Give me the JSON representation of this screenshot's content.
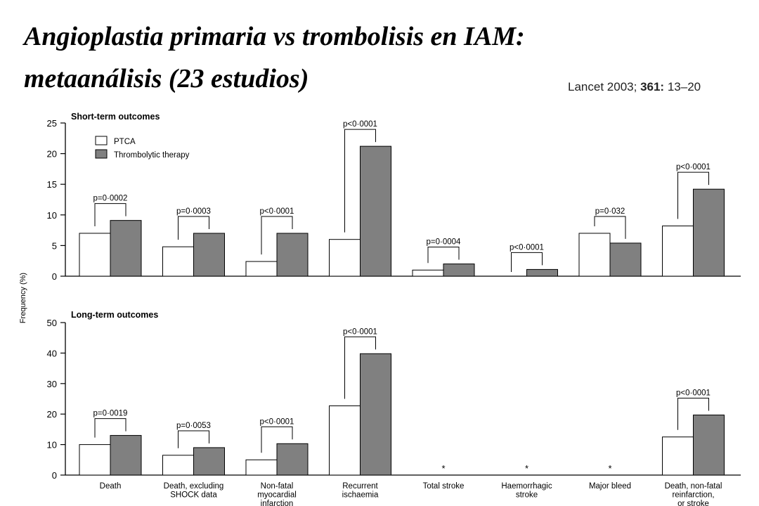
{
  "slide": {
    "title_line1": "Angioplastia primaria vs trombolisis en IAM:",
    "title_line2": "metaanálisis (23 estudios)",
    "citation_journal": "Lancet",
    "citation_year": "2003;",
    "citation_volume": "361:",
    "citation_pages": "13–20"
  },
  "colors": {
    "ptca": "#ffffff",
    "thrombolytic": "#808080",
    "stroke": "#000000"
  },
  "chart_data": [
    {
      "type": "bar",
      "title": "Short-term outcomes",
      "ylabel": "Frequency (%)",
      "ylim": [
        0,
        25
      ],
      "yticks": [
        0,
        5,
        10,
        15,
        20,
        25
      ],
      "legend": {
        "placement": "top-left",
        "entries": [
          "PTCA",
          "Thrombolytic therapy"
        ]
      },
      "categories": [
        "Death",
        "Death, excluding SHOCK data",
        "Non-fatal myocardial infarction",
        "Recurrent ischaemia",
        "Total stroke",
        "Haemorrhagic stroke",
        "Major bleed",
        "Death, non-fatal reinfarction, or stroke"
      ],
      "series": [
        {
          "name": "PTCA",
          "values": [
            7,
            4.8,
            2.4,
            6,
            1,
            0,
            7,
            8.2
          ]
        },
        {
          "name": "Thrombolytic therapy",
          "values": [
            9.1,
            7,
            7,
            21.2,
            2,
            1.1,
            5.4,
            14.2
          ]
        }
      ],
      "pvalues": [
        "p=0·0002",
        "p=0·0003",
        "p<0·0001",
        "p<0·0001",
        "p=0·0004",
        "p<0·0001",
        "p=0·032",
        "p<0·0001"
      ]
    },
    {
      "type": "bar",
      "title": "Long-term outcomes",
      "ylim": [
        0,
        50
      ],
      "yticks": [
        0,
        10,
        20,
        30,
        40,
        50
      ],
      "categories": [
        "Death",
        "Death, excluding SHOCK data",
        "Non-fatal myocardial infarction",
        "Recurrent ischaemia",
        "Total stroke",
        "Haemorrhagic stroke",
        "Major bleed",
        "Death, non-fatal reinfarction, or stroke"
      ],
      "series": [
        {
          "name": "PTCA",
          "values": [
            10,
            6.5,
            5,
            22.7,
            null,
            null,
            null,
            12.5
          ]
        },
        {
          "name": "Thrombolytic therapy",
          "values": [
            13,
            9,
            10.3,
            39.8,
            null,
            null,
            null,
            19.7
          ]
        }
      ],
      "pvalues": [
        "p=0·0019",
        "p=0·0053",
        "p<0·0001",
        "p<0·0001",
        "*",
        "*",
        "*",
        "p<0·0001"
      ],
      "xtick_labels": [
        [
          "Death"
        ],
        [
          "Death, excluding",
          "SHOCK data"
        ],
        [
          "Non-fatal",
          "myocardial",
          "infarction"
        ],
        [
          "Recurrent",
          "ischaemia"
        ],
        [
          "Total stroke"
        ],
        [
          "Haemorrhagic",
          "stroke"
        ],
        [
          "Major bleed"
        ],
        [
          "Death, non-fatal",
          "reinfarction,",
          "or stroke"
        ]
      ]
    }
  ]
}
